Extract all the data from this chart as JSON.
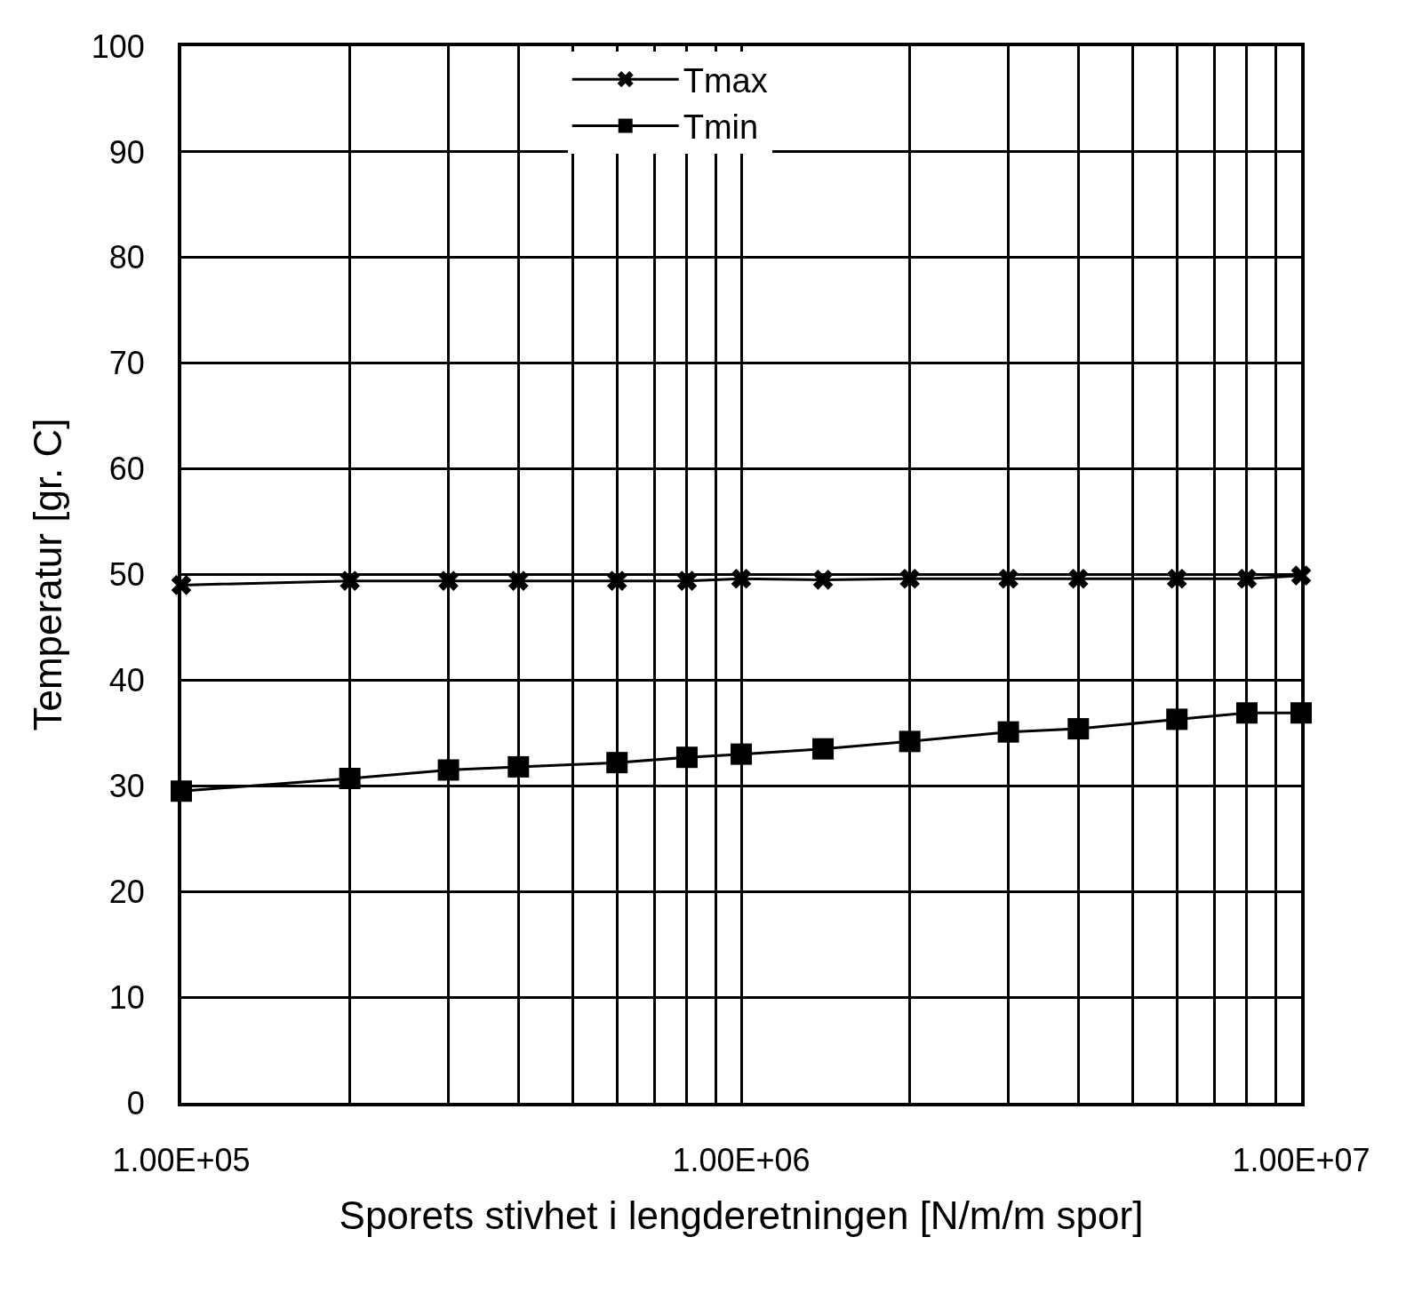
{
  "chart_data": {
    "type": "line",
    "xlabel": "Sporets stivhet i lengderetningen [N/m/m spor]",
    "ylabel": "Temperatur [gr. C]",
    "x": [
      100000,
      200000,
      300000,
      400000,
      600000,
      800000,
      1000000,
      1400000,
      2000000,
      3000000,
      4000000,
      6000000,
      8000000,
      10000000
    ],
    "series": [
      {
        "name": "Tmax",
        "color": "#000000",
        "marker": "cross",
        "values": [
          49.0,
          49.4,
          49.4,
          49.4,
          49.4,
          49.4,
          49.6,
          49.5,
          49.6,
          49.6,
          49.6,
          49.6,
          49.6,
          49.9
        ]
      },
      {
        "name": "Tmin",
        "color": "#000000",
        "marker": "square",
        "values": [
          29.5,
          30.7,
          31.5,
          31.8,
          32.2,
          32.7,
          33.0,
          33.5,
          34.2,
          35.1,
          35.4,
          36.3,
          36.9,
          36.9
        ]
      }
    ],
    "xlim": [
      100000,
      10000000
    ],
    "xticks": [
      {
        "value": 100000,
        "label": "1.00E+05"
      },
      {
        "value": 200000,
        "label": null
      },
      {
        "value": 300000,
        "label": null
      },
      {
        "value": 400000,
        "label": null
      },
      {
        "value": 500000,
        "label": null
      },
      {
        "value": 600000,
        "label": null
      },
      {
        "value": 700000,
        "label": null
      },
      {
        "value": 800000,
        "label": null
      },
      {
        "value": 900000,
        "label": null
      },
      {
        "value": 1000000,
        "label": "1.00E+06"
      },
      {
        "value": 2000000,
        "label": null
      },
      {
        "value": 3000000,
        "label": null
      },
      {
        "value": 4000000,
        "label": null
      },
      {
        "value": 5000000,
        "label": null
      },
      {
        "value": 6000000,
        "label": null
      },
      {
        "value": 7000000,
        "label": null
      },
      {
        "value": 8000000,
        "label": null
      },
      {
        "value": 9000000,
        "label": null
      },
      {
        "value": 10000000,
        "label": "1.00E+07"
      }
    ],
    "ylim": [
      0,
      100
    ],
    "yticks": [
      0,
      10,
      20,
      30,
      40,
      50,
      60,
      70,
      80,
      90,
      100
    ],
    "log": "x",
    "grid": true,
    "legend": "top",
    "line_style": "solid"
  }
}
